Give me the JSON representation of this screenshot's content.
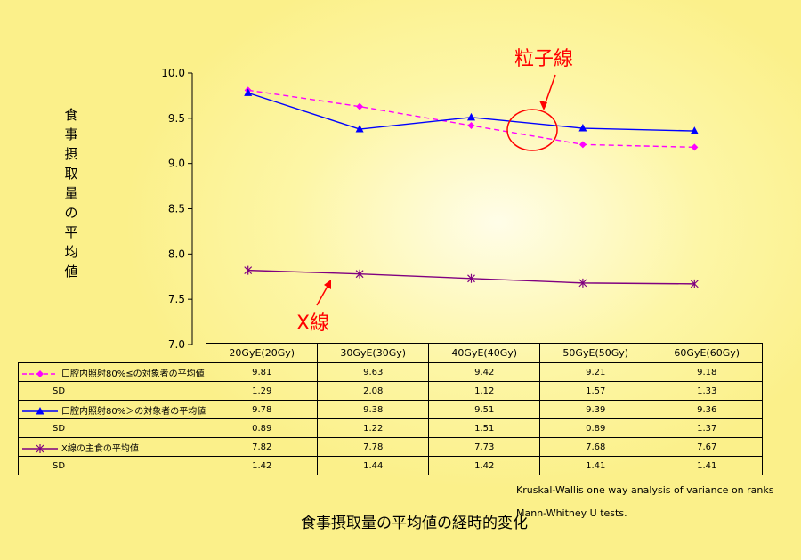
{
  "chart_data": {
    "type": "line",
    "title": "食事摂取量の平均値の経時的変化",
    "ylabel": "食事摂取量の平均値",
    "xlabel": "",
    "categories": [
      "20GyE(20Gy)",
      "30GyE(30Gy)",
      "40GyE(40Gy)",
      "50GyE(50Gy)",
      "60GyE(60Gy)"
    ],
    "ylim": [
      7.0,
      10.0
    ],
    "yticks": [
      "7.0",
      "7.5",
      "8.0",
      "8.5",
      "9.0",
      "9.5",
      "10.0"
    ],
    "series": [
      {
        "name": "口腔内照射80%≦の対象者の平均値",
        "values": [
          9.81,
          9.63,
          9.42,
          9.21,
          9.18
        ],
        "sd": [
          1.29,
          2.08,
          1.12,
          1.57,
          1.33
        ],
        "color": "#ff00ff",
        "style": "dashed",
        "marker": "diamond"
      },
      {
        "name": "口腔内照射80%＞の対象者の平均値",
        "values": [
          9.78,
          9.38,
          9.51,
          9.39,
          9.36
        ],
        "sd": [
          0.89,
          1.22,
          1.51,
          0.89,
          1.37
        ],
        "color": "#0000ff",
        "style": "solid",
        "marker": "triangle"
      },
      {
        "name": "X線の主食の平均値",
        "values": [
          7.82,
          7.78,
          7.73,
          7.68,
          7.67
        ],
        "sd": [
          1.42,
          1.44,
          1.42,
          1.41,
          1.41
        ],
        "color": "#800080",
        "style": "solid",
        "marker": "star"
      }
    ],
    "sd_label": "SD",
    "annotations": [
      "粒子線",
      "X線"
    ],
    "notes": [
      "Kruskal-Wallis one way analysis of variance on ranks",
      "Mann-Whitney  U tests."
    ],
    "grid": false,
    "legend": "table-left"
  },
  "table": {
    "rows": [
      {
        "label": "口腔内照射80%≦の対象者の平均値",
        "values": [
          "9.81",
          "9.63",
          "9.42",
          "9.21",
          "9.18"
        ],
        "key": 0
      },
      {
        "label": "SD",
        "values": [
          "1.29",
          "2.08",
          "1.12",
          "1.57",
          "1.33"
        ]
      },
      {
        "label": "口腔内照射80%＞の対象者の平均値",
        "values": [
          "9.78",
          "9.38",
          "9.51",
          "9.39",
          "9.36"
        ],
        "key": 1
      },
      {
        "label": "SD",
        "values": [
          "0.89",
          "1.22",
          "1.51",
          "0.89",
          "1.37"
        ]
      },
      {
        "label": "X線の主食の平均値",
        "values": [
          "7.82",
          "7.78",
          "7.73",
          "7.68",
          "7.67"
        ],
        "key": 2
      },
      {
        "label": "SD",
        "values": [
          "1.42",
          "1.44",
          "1.42",
          "1.41",
          "1.41"
        ]
      }
    ]
  }
}
